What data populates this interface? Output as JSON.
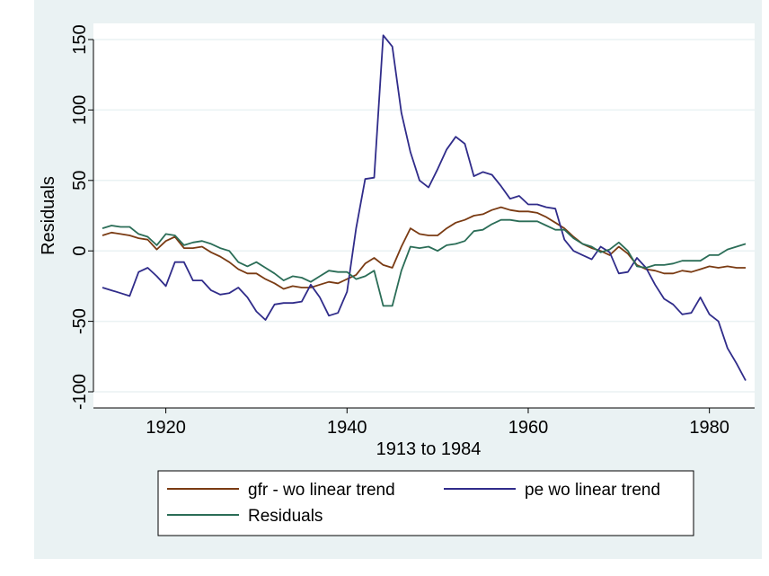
{
  "chart_data": {
    "type": "line",
    "ylabel": "Residuals",
    "xlabel": "1913 to 1984",
    "xlim": [
      1913,
      1984
    ],
    "ylim": [
      -100,
      150
    ],
    "x_ticks": [
      1920,
      1940,
      1960,
      1980
    ],
    "y_ticks": [
      -100,
      -50,
      0,
      50,
      100,
      150
    ],
    "y_tick_labels": [
      "-100",
      "-50",
      "0",
      "50",
      "100",
      "150"
    ],
    "grid": true,
    "legend_position": "bottom",
    "colors": {
      "background": "#eaf2f3",
      "plot": "#ffffff",
      "grid": "#eaf2f3"
    },
    "x": [
      1913,
      1914,
      1915,
      1916,
      1917,
      1918,
      1919,
      1920,
      1921,
      1922,
      1923,
      1924,
      1925,
      1926,
      1927,
      1928,
      1929,
      1930,
      1931,
      1932,
      1933,
      1934,
      1935,
      1936,
      1937,
      1938,
      1939,
      1940,
      1941,
      1942,
      1943,
      1944,
      1945,
      1946,
      1947,
      1948,
      1949,
      1950,
      1951,
      1952,
      1953,
      1954,
      1955,
      1956,
      1957,
      1958,
      1959,
      1960,
      1961,
      1962,
      1963,
      1964,
      1965,
      1966,
      1967,
      1968,
      1969,
      1970,
      1971,
      1972,
      1973,
      1974,
      1975,
      1976,
      1977,
      1978,
      1979,
      1980,
      1981,
      1982,
      1983,
      1984
    ],
    "series": [
      {
        "name": "gfr - wo linear trend",
        "color": "#7a3b13",
        "values": [
          11,
          13,
          12,
          11,
          9,
          8,
          1,
          7,
          10,
          2,
          2,
          3,
          -1,
          -4,
          -8,
          -13,
          -16,
          -16,
          -20,
          -23,
          -27,
          -25,
          -26,
          -26,
          -24,
          -22,
          -23,
          -20,
          -17,
          -9,
          -5,
          -10,
          -12,
          3,
          16,
          12,
          11,
          11,
          16,
          20,
          22,
          25,
          26,
          29,
          31,
          29,
          28,
          28,
          27,
          24,
          20,
          16,
          10,
          5,
          2,
          0,
          -3,
          3,
          -2,
          -10,
          -13,
          -14,
          -16,
          -16,
          -14,
          -15,
          -13,
          -11,
          -12,
          -11,
          -12,
          -12
        ]
      },
      {
        "name": "pe wo linear trend",
        "color": "#302c8a",
        "values": [
          -26,
          -28,
          -30,
          -32,
          -15,
          -12,
          -18,
          -25,
          -8,
          -8,
          -21,
          -21,
          -28,
          -31,
          -30,
          -26,
          -33,
          -43,
          -49,
          -38,
          -37,
          -37,
          -36,
          -24,
          -33,
          -46,
          -44,
          -29,
          16,
          51,
          52,
          153,
          145,
          98,
          70,
          50,
          45,
          58,
          72,
          81,
          76,
          53,
          56,
          54,
          46,
          37,
          39,
          33,
          33,
          31,
          30,
          8,
          0,
          -3,
          -6,
          3,
          -1,
          -16,
          -15,
          -5,
          -12,
          -24,
          -34,
          -38,
          -45,
          -44,
          -33,
          -45,
          -50,
          -69,
          -80,
          -92
        ]
      },
      {
        "name": "Residuals",
        "color": "#2b6d57",
        "values": [
          16,
          18,
          17,
          17,
          12,
          10,
          4,
          12,
          11,
          4,
          6,
          7,
          5,
          2,
          0,
          -8,
          -11,
          -8,
          -12,
          -16,
          -21,
          -18,
          -19,
          -22,
          -18,
          -14,
          -15,
          -15,
          -20,
          -18,
          -14,
          -39,
          -39,
          -14,
          3,
          2,
          3,
          0,
          4,
          5,
          7,
          14,
          15,
          19,
          22,
          22,
          21,
          21,
          21,
          18,
          15,
          15,
          9,
          5,
          3,
          -1,
          1,
          6,
          0,
          -11,
          -12,
          -10,
          -10,
          -9,
          -7,
          -7,
          -7,
          -3,
          -3,
          1,
          3,
          5
        ]
      }
    ]
  }
}
